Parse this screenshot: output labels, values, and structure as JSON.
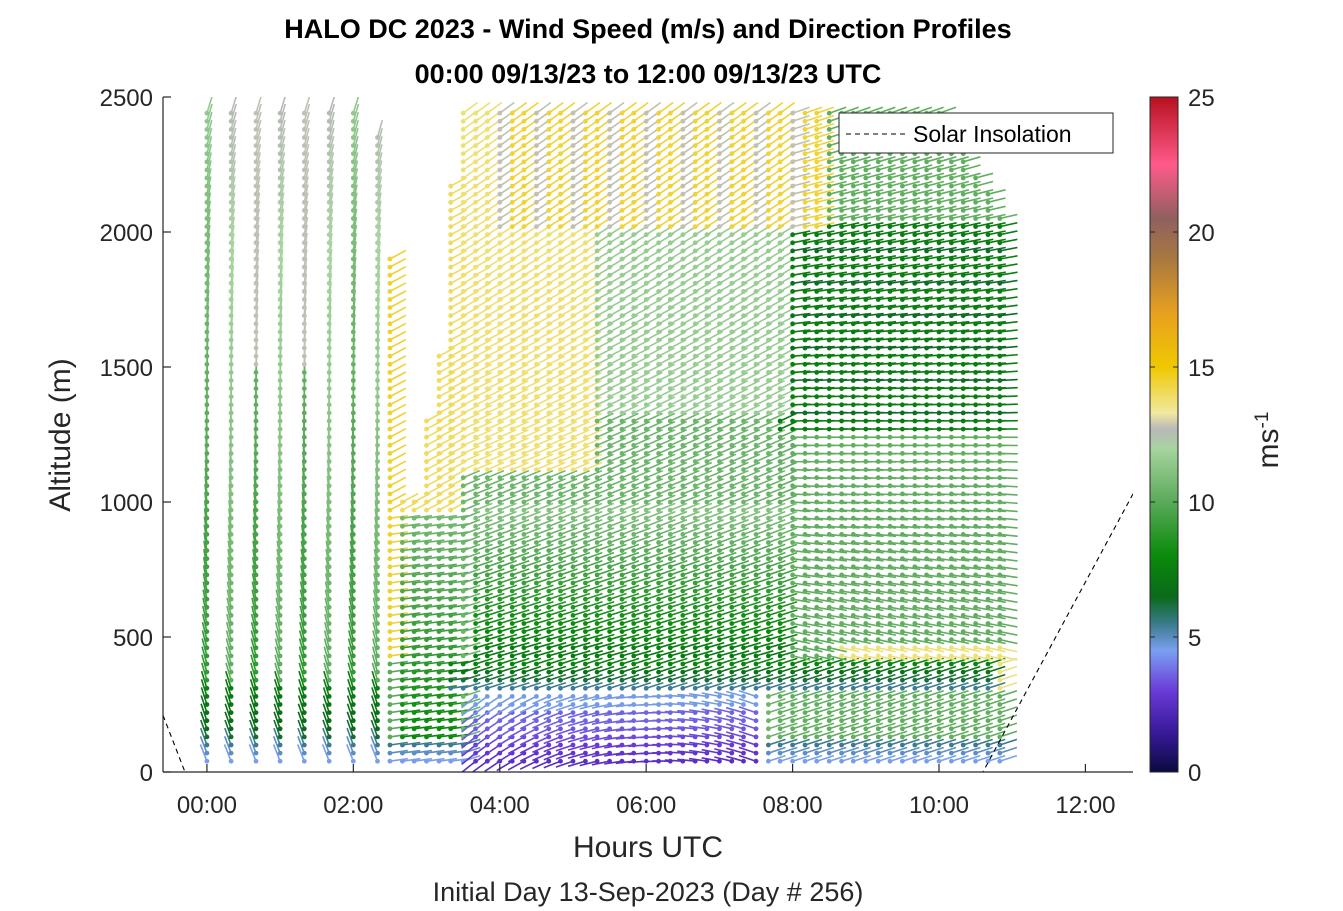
{
  "chart_data": {
    "type": "barb-profile",
    "title": "HALO DC 2023 - Wind Speed (m/s) and Direction Profiles",
    "subtitle": "00:00 09/13/23 to 12:00 09/13/23  UTC",
    "xlabel": "Hours UTC",
    "xlabel2": "Initial Day 13-Sep-2023 (Day # 256)",
    "ylabel": "Altitude (m)",
    "xlim": [
      -0.6,
      12.65
    ],
    "ylim": [
      0,
      2500
    ],
    "x_ticks": [
      0,
      2,
      4,
      6,
      8,
      10,
      12
    ],
    "x_tick_labels": [
      "00:00",
      "02:00",
      "04:00",
      "06:00",
      "08:00",
      "10:00",
      "12:00"
    ],
    "y_ticks": [
      0,
      500,
      1000,
      1500,
      2000,
      2500
    ],
    "y_tick_labels": [
      "0",
      "500",
      "1000",
      "1500",
      "2000",
      "2500"
    ],
    "legend": {
      "entries": [
        "Solar Insolation"
      ],
      "location": "top-right",
      "line_style": "dashed"
    },
    "colorbar": {
      "label": "ms",
      "label_exponent": "-1",
      "range": [
        0,
        25
      ],
      "ticks": [
        0,
        5,
        10,
        15,
        20,
        25
      ],
      "tick_labels": [
        "0",
        "5",
        "10",
        "15",
        "20",
        "25"
      ],
      "stops": [
        {
          "v": 0,
          "c": "#0a0a40"
        },
        {
          "v": 1.5,
          "c": "#3a1a9a"
        },
        {
          "v": 3,
          "c": "#6a3ad8"
        },
        {
          "v": 4.5,
          "c": "#7aa0f0"
        },
        {
          "v": 5.5,
          "c": "#3a7a8a"
        },
        {
          "v": 6.5,
          "c": "#0a6a1a"
        },
        {
          "v": 8,
          "c": "#0a8a0a"
        },
        {
          "v": 10,
          "c": "#5aaa5a"
        },
        {
          "v": 12,
          "c": "#a8d4a0"
        },
        {
          "v": 12.7,
          "c": "#b8b8b8"
        },
        {
          "v": 13.3,
          "c": "#f0e8a0"
        },
        {
          "v": 15,
          "c": "#f0c800"
        },
        {
          "v": 17,
          "c": "#e8a020"
        },
        {
          "v": 19,
          "c": "#a87840"
        },
        {
          "v": 20.5,
          "c": "#906060"
        },
        {
          "v": 22.5,
          "c": "#ff5a8a"
        },
        {
          "v": 25,
          "c": "#b81020"
        }
      ]
    },
    "solar_insolation": {
      "x": [
        -0.6,
        -0.3,
        0,
        1,
        2,
        3,
        4,
        5,
        6,
        7,
        8,
        9,
        10,
        10.6,
        12.65
      ],
      "y": [
        210,
        0,
        0,
        0,
        0,
        0,
        0,
        0,
        0,
        0,
        0,
        0,
        0,
        0,
        1030
      ]
    },
    "profile_times": [
      0.0,
      0.33,
      0.67,
      1.0,
      1.33,
      1.67,
      2.0,
      2.33,
      2.5,
      2.67,
      2.83,
      3.0,
      3.17,
      3.33,
      3.5,
      3.67,
      3.83,
      4.0,
      4.17,
      4.33,
      4.5,
      4.67,
      4.83,
      5.0,
      5.17,
      5.33,
      5.5,
      5.67,
      5.83,
      6.0,
      6.17,
      6.33,
      6.5,
      6.67,
      6.83,
      7.0,
      7.17,
      7.33,
      7.5,
      7.67,
      7.83,
      8.0,
      8.17,
      8.33,
      8.5,
      8.67,
      8.83,
      9.0,
      9.17,
      9.33,
      9.5,
      9.67,
      9.83,
      10.0,
      10.17,
      10.33,
      10.5,
      10.67,
      10.83
    ],
    "profile_tops": [
      2450,
      2450,
      2450,
      2450,
      2450,
      2450,
      2450,
      2360,
      1900,
      1000,
      1000,
      1300,
      1550,
      2180,
      2450,
      2450,
      2450,
      2450,
      2450,
      2450,
      2450,
      2450,
      2450,
      2450,
      2450,
      2450,
      2450,
      2450,
      2450,
      2450,
      2450,
      2450,
      2450,
      2450,
      2450,
      2450,
      2450,
      2450,
      2450,
      2450,
      2450,
      2450,
      2450,
      2450,
      2450,
      2450,
      2450,
      2450,
      2450,
      2450,
      2450,
      2450,
      2450,
      2450,
      2400,
      2300,
      2200,
      2150,
      2050
    ],
    "gate_spacing_m": 30
  }
}
